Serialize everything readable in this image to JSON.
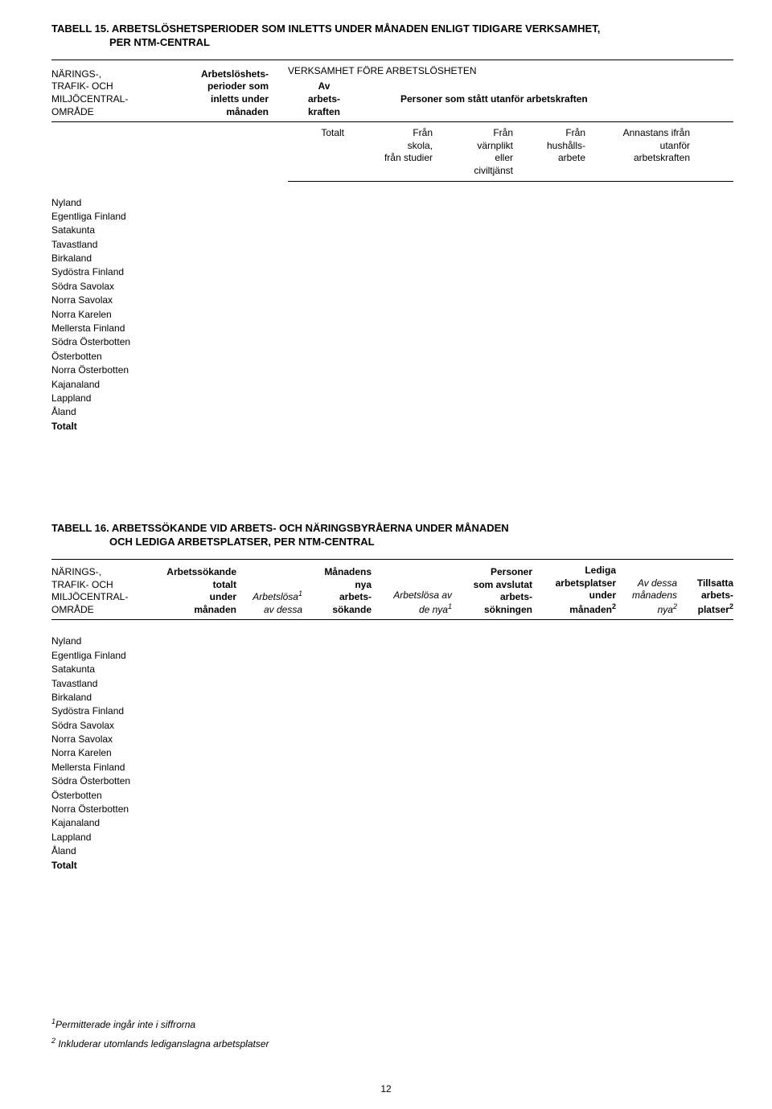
{
  "tabell15": {
    "title_line1": "TABELL 15. ARBETSLÖSHETSPERIODER SOM INLETTS UNDER MÅNADEN ENLIGT TIDIGARE VERKSAMHET,",
    "title_line2": "PER NTM-CENTRAL",
    "left_header_l1": "NÄRINGS-,",
    "left_header_l2": "TRAFIK- OCH",
    "left_header_l3": "MILJÖCENTRAL-",
    "left_header_l4": "OMRÅDE",
    "mid_header_l1": "Arbetslöshets-",
    "mid_header_l2": "perioder som",
    "mid_header_l3": "inletts under",
    "mid_header_l4": "månaden",
    "verksamhet_title": "VERKSAMHET FÖRE ARBETSLÖSHETEN",
    "av_l1": "Av",
    "av_l2": "arbets-",
    "av_l3": "kraften",
    "personer_title": "Personer som stått utanför arbetskraften",
    "sub_totalt": "Totalt",
    "sub_fran_skola_l1": "Från",
    "sub_fran_skola_l2": "skola,",
    "sub_fran_skola_l3": "från studier",
    "sub_varnplikt_l1": "Från",
    "sub_varnplikt_l2": "värnplikt",
    "sub_varnplikt_l3": "eller",
    "sub_varnplikt_l4": "civiltjänst",
    "sub_hushall_l1": "Från",
    "sub_hushall_l2": "hushålls-",
    "sub_hushall_l3": "arbete",
    "sub_annastans_l1": "Annastans ifrån",
    "sub_annastans_l2": "utanför",
    "sub_annastans_l3": "arbetskraften"
  },
  "regions": [
    "Nyland",
    "Egentliga Finland",
    "Satakunta",
    "Tavastland",
    "Birkaland",
    "Sydöstra Finland",
    "Södra Savolax",
    "Norra Savolax",
    "Norra Karelen",
    "Mellersta Finland",
    "Södra Österbotten",
    "Österbotten",
    "Norra Österbotten",
    "Kajanaland",
    "Lappland",
    "Åland"
  ],
  "regions_totalt": "Totalt",
  "tabell16": {
    "title_line1": "TABELL 16. ARBETSSÖKANDE VID ARBETS- OCH NÄRINGSBYRÅERNA UNDER MÅNADEN",
    "title_line2": "OCH LEDIGA ARBETSPLATSER, PER NTM-CENTRAL",
    "left_header_l1": "NÄRINGS-,",
    "left_header_l2": "TRAFIK- OCH",
    "left_header_l3": "MILJÖCENTRAL-",
    "left_header_l4": "OMRÅDE",
    "c1_l1": "Arbetssökande",
    "c1_l2": "totalt",
    "c1_l3": "under",
    "c1_l4": "månaden",
    "c2_l1": "Arbetslösa",
    "c2_sup": "1",
    "c2_l2": "av dessa",
    "c3_l1": "Månadens",
    "c3_l2": "nya",
    "c3_l3": "arbets-",
    "c3_l4": "sökande",
    "c4_l1": "Arbetslösa av",
    "c4_l2": "de nya",
    "c4_sup": "1",
    "c5_l1": "Personer",
    "c5_l2": "som avslutat",
    "c5_l3": "arbets-",
    "c5_l4": "sökningen",
    "c6_l1": "Lediga",
    "c6_l2": "arbetsplatser",
    "c6_l3": "under",
    "c6_l4": "månaden",
    "c6_sup": "2",
    "c7_l1": "Av dessa",
    "c7_l2": "månadens",
    "c7_l3": "nya",
    "c7_sup": "2",
    "c8_l1": "Tillsatta",
    "c8_l2": "arbets-",
    "c8_l3": "platser",
    "c8_sup": "2"
  },
  "footnotes": {
    "f1_sup": "1",
    "f1_text": "Permitterade ingår inte i siffrorna",
    "f2_sup": "2",
    "f2_text": " Inkluderar utomlands lediganslagna arbetsplatser"
  },
  "page_number": "12"
}
